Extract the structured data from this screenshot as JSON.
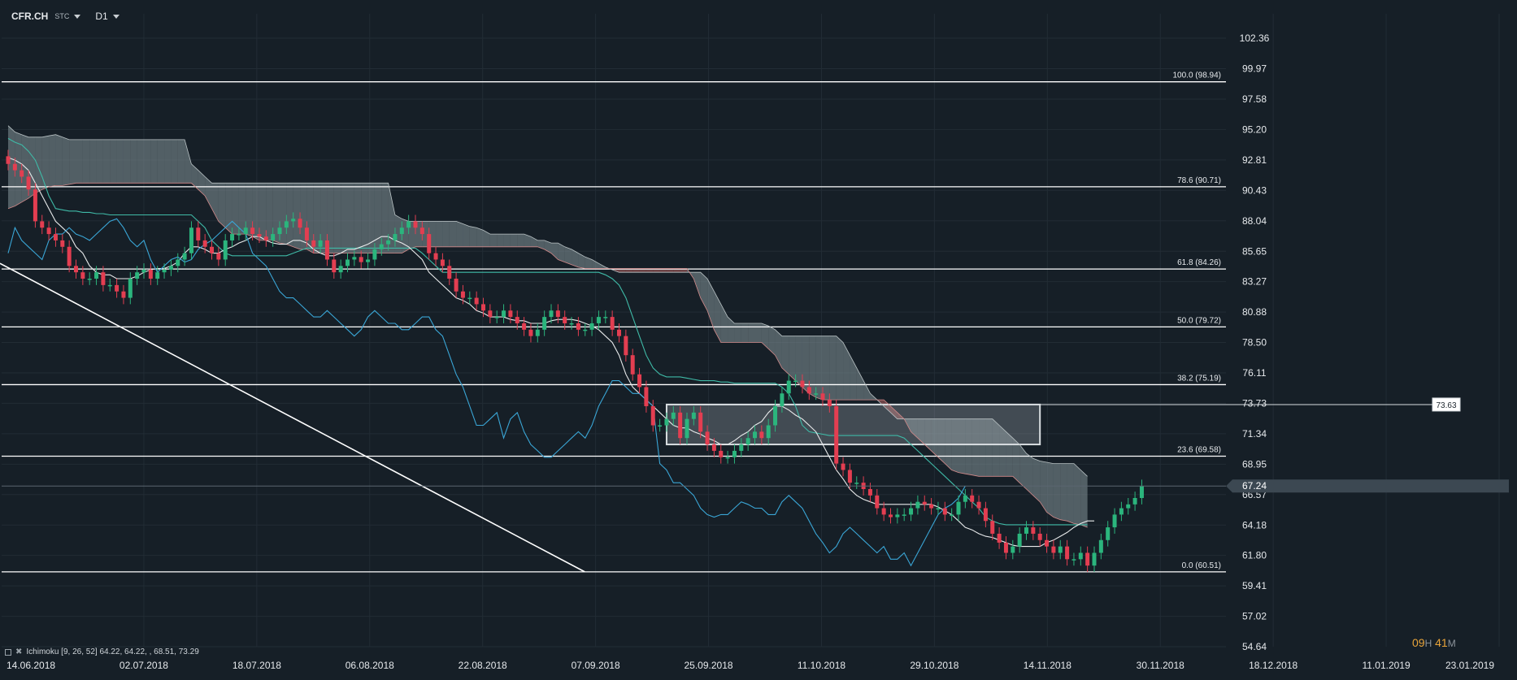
{
  "header": {
    "symbol": "CFR.CH",
    "market": "STC",
    "timeframe": "D1"
  },
  "indicator_label": "Ichimoku  [9, 26, 52]  64.22,  64.22,  , 68.51,  73.29",
  "timer": {
    "h": "09",
    "h_unit": "H",
    "m": "41",
    "m_unit": "M"
  },
  "colors": {
    "background": "#161f27",
    "grid": "#222c35",
    "up_candle": "#2bb57d",
    "down_candle": "#e33e51",
    "cloud_bull": "#7c8a8f",
    "cloud_bear": "#a85e5e",
    "kijun": "#3fbaa7",
    "tenkan": "#e8eaeb",
    "chikou": "#3aa6d6",
    "fib_line": "#ffffff"
  },
  "chart_data": {
    "type": "candlestick",
    "y_ticks": [
      "102.36",
      "99.97",
      "97.58",
      "95.20",
      "92.81",
      "90.43",
      "88.04",
      "85.65",
      "83.27",
      "80.88",
      "78.50",
      "76.11",
      "73.73",
      "71.34",
      "68.95",
      "66.57",
      "64.18",
      "61.80",
      "59.41",
      "57.02",
      "54.64"
    ],
    "x_ticks": [
      "14.06.2018",
      "02.07.2018",
      "18.07.2018",
      "06.08.2018",
      "22.08.2018",
      "07.09.2018",
      "25.09.2018",
      "11.10.2018",
      "29.10.2018",
      "14.11.2018",
      "30.11.2018",
      "18.12.2018",
      "11.01.2019",
      "23.01.2019"
    ],
    "ylim": [
      54.64,
      102.36
    ],
    "xlim": [
      0,
      160
    ],
    "last_price": "67.24",
    "fib_levels": [
      {
        "label": "100.0 (98.94)",
        "value": 98.94
      },
      {
        "label": "78.6 (90.71)",
        "value": 90.71
      },
      {
        "label": "61.8 (84.26)",
        "value": 84.26
      },
      {
        "label": "50.0 (79.72)",
        "value": 79.72
      },
      {
        "label": "38.2 (75.19)",
        "value": 75.19
      },
      {
        "label": "23.6 (69.58)",
        "value": 69.58
      },
      {
        "label": "0.0 (60.51)",
        "value": 60.51
      }
    ],
    "zone": {
      "x_start": 97,
      "x_end": 152,
      "y_low": 70.5,
      "y_high": 73.63,
      "label": "73.63"
    },
    "trendline": {
      "x1": 0,
      "y1": 84.7,
      "x2": 61,
      "y2": 60.51
    },
    "close": [
      92.5,
      92.0,
      91.5,
      90.5,
      88.0,
      87.5,
      87.0,
      86.5,
      86.0,
      84.5,
      84.0,
      83.5,
      83.5,
      84.0,
      83.0,
      83.0,
      82.5,
      82.0,
      83.5,
      84.0,
      84.2,
      83.5,
      84.0,
      84.2,
      84.5,
      85.0,
      85.5,
      87.5,
      86.5,
      86.0,
      85.5,
      85.0,
      86.5,
      87.0,
      87.0,
      87.5,
      87.0,
      86.8,
      86.5,
      87.0,
      87.5,
      88.0,
      88.2,
      87.5,
      86.5,
      86.0,
      86.5,
      85.0,
      84.0,
      84.5,
      85.0,
      85.2,
      84.8,
      85.0,
      85.8,
      86.2,
      86.5,
      87.0,
      87.5,
      88.0,
      87.5,
      87.0,
      85.5,
      85.0,
      84.5,
      83.5,
      82.5,
      82.0,
      82.0,
      81.5,
      81.0,
      80.5,
      80.5,
      81.0,
      80.5,
      80.0,
      79.5,
      79.0,
      79.5,
      80.5,
      81.0,
      80.5,
      80.0,
      80.0,
      79.5,
      79.5,
      80.0,
      80.5,
      80.5,
      79.5,
      79.0,
      77.5,
      76.0,
      75.0,
      73.5,
      72.0,
      72.0,
      72.5,
      73.0,
      71.0,
      72.5,
      73.0,
      71.5,
      70.5,
      70.0,
      69.5,
      69.5,
      70.0,
      70.5,
      71.0,
      71.5,
      71.0,
      72.0,
      73.5,
      74.5,
      75.5,
      75.5,
      75.0,
      74.5,
      74.5,
      74.0,
      73.5,
      69.0,
      68.5,
      67.5,
      67.5,
      67.0,
      66.5,
      65.5,
      65.0,
      64.8,
      65.0,
      65.0,
      65.5,
      66.0,
      65.8,
      65.5,
      65.5,
      65.0,
      65.0,
      66.0,
      66.5,
      66.0,
      65.5,
      64.5,
      63.5,
      62.8,
      62.0,
      62.5,
      63.5,
      64.0,
      63.5,
      63.0,
      62.5,
      62.0,
      62.5,
      61.5,
      61.5,
      62.0,
      61.0,
      62.0,
      63.0,
      64.0,
      65.0,
      65.5,
      65.8,
      66.3,
      67.24
    ],
    "cloud_upper": [
      95.5,
      95.0,
      94.8,
      94.6,
      94.6,
      94.6,
      94.7,
      94.8,
      94.6,
      94.4,
      94.4,
      94.4,
      94.4,
      94.4,
      94.4,
      94.4,
      94.4,
      94.4,
      94.4,
      94.4,
      94.4,
      94.4,
      94.4,
      94.4,
      94.4,
      94.4,
      94.4,
      92.5,
      92.0,
      91.5,
      91.0,
      91.0,
      91.0,
      91.0,
      91.0,
      91.0,
      91.0,
      91.0,
      91.0,
      91.0,
      91.0,
      91.0,
      91.0,
      91.0,
      91.0,
      91.0,
      91.0,
      91.0,
      91.0,
      91.0,
      91.0,
      91.0,
      91.0,
      91.0,
      91.0,
      91.0,
      91.0,
      88.5,
      88.2,
      88.0,
      88.0,
      88.0,
      88.0,
      88.0,
      88.0,
      88.0,
      88.0,
      87.8,
      87.6,
      87.5,
      87.3,
      87.0,
      87.0,
      87.0,
      87.0,
      87.0,
      87.0,
      86.8,
      86.5,
      86.5,
      86.3,
      86.3,
      86.0,
      85.8,
      85.5,
      85.2,
      85.0,
      84.7,
      84.4,
      84.2,
      84.0,
      84.0,
      84.0,
      84.0,
      84.0,
      84.0,
      84.0,
      84.0,
      84.0,
      84.0,
      84.0,
      84.0,
      84.0,
      83.5,
      82.5,
      81.5,
      80.5,
      80.0,
      80.0,
      80.0,
      80.0,
      80.0,
      79.8,
      79.5,
      79.0,
      79.0,
      79.0,
      79.0,
      79.0,
      79.0,
      79.0,
      79.0,
      79.0,
      78.5,
      77.5,
      76.5,
      75.5,
      74.5,
      74.0,
      73.5,
      73.0,
      72.5,
      72.5,
      72.5,
      72.5,
      72.5,
      72.5,
      72.5,
      72.5,
      72.5,
      72.5,
      72.5,
      72.5,
      72.5,
      72.5,
      72.5,
      72.0,
      71.5,
      71.0,
      70.5,
      69.8,
      69.4,
      69.2,
      69.1,
      69.0,
      69.0,
      69.0,
      69.0,
      68.5,
      68.0
    ],
    "cloud_lower": [
      89.0,
      89.2,
      89.5,
      89.8,
      90.2,
      90.5,
      90.7,
      90.8,
      90.8,
      90.9,
      91.0,
      91.0,
      91.0,
      91.0,
      91.0,
      91.0,
      91.0,
      91.0,
      91.0,
      91.0,
      91.0,
      91.0,
      91.0,
      91.0,
      91.0,
      91.0,
      91.0,
      91.0,
      90.5,
      90.0,
      89.0,
      88.0,
      87.5,
      87.0,
      87.0,
      87.0,
      86.8,
      86.5,
      86.5,
      86.5,
      86.3,
      86.2,
      86.0,
      85.8,
      85.8,
      85.5,
      85.5,
      85.5,
      85.5,
      85.5,
      85.5,
      85.5,
      85.5,
      85.5,
      85.5,
      85.5,
      85.5,
      85.5,
      85.5,
      85.8,
      86.0,
      86.0,
      86.0,
      86.0,
      86.0,
      86.0,
      86.0,
      86.0,
      86.0,
      86.0,
      86.0,
      86.0,
      86.0,
      86.0,
      86.0,
      86.0,
      86.0,
      86.0,
      86.0,
      85.8,
      85.5,
      85.0,
      84.8,
      84.6,
      84.4,
      84.3,
      84.3,
      84.3,
      84.3,
      84.3,
      84.3,
      84.3,
      84.3,
      84.3,
      84.3,
      84.3,
      84.3,
      84.3,
      84.3,
      84.3,
      84.3,
      83.5,
      82.0,
      81.0,
      79.5,
      78.5,
      78.5,
      78.5,
      78.5,
      78.5,
      78.5,
      78.5,
      78.0,
      77.5,
      76.5,
      76.0,
      75.5,
      75.0,
      74.5,
      74.2,
      74.0,
      74.0,
      74.0,
      74.0,
      74.0,
      74.0,
      74.0,
      74.0,
      74.0,
      74.0,
      73.5,
      73.0,
      72.5,
      71.5,
      71.0,
      70.5,
      70.0,
      69.5,
      69.0,
      68.5,
      68.3,
      68.2,
      68.1,
      68.0,
      68.0,
      68.0,
      68.0,
      68.0,
      68.0,
      67.5,
      67.0,
      66.5,
      66.0,
      65.2,
      64.8,
      64.6,
      64.5,
      64.3,
      64.2,
      64.0
    ],
    "kijun": [
      94.5,
      94.2,
      94.0,
      93.5,
      92.8,
      91.5,
      90.0,
      89.0,
      88.9,
      88.8,
      88.8,
      88.7,
      88.7,
      88.6,
      88.6,
      88.5,
      88.5,
      88.5,
      88.5,
      88.5,
      88.5,
      88.5,
      88.5,
      88.5,
      88.5,
      88.5,
      88.5,
      88.5,
      88.0,
      87.5,
      86.5,
      86.0,
      85.5,
      85.3,
      85.3,
      85.3,
      85.3,
      85.3,
      85.3,
      85.3,
      85.3,
      85.3,
      85.5,
      85.7,
      85.9,
      85.9,
      85.9,
      85.9,
      85.9,
      85.9,
      85.9,
      85.9,
      85.9,
      85.9,
      85.9,
      85.9,
      85.9,
      85.9,
      85.9,
      85.9,
      85.9,
      85.5,
      85.0,
      84.5,
      84.0,
      84.0,
      84.0,
      84.0,
      84.0,
      84.0,
      84.0,
      84.0,
      84.0,
      84.0,
      84.0,
      84.0,
      84.0,
      84.0,
      84.0,
      84.0,
      84.0,
      84.0,
      84.0,
      84.0,
      84.0,
      84.0,
      84.0,
      84.0,
      83.8,
      83.5,
      83.0,
      82.0,
      80.5,
      79.0,
      77.5,
      76.5,
      76.0,
      75.8,
      75.8,
      75.8,
      75.7,
      75.6,
      75.5,
      75.5,
      75.5,
      75.4,
      75.4,
      75.3,
      75.3,
      75.3,
      75.3,
      75.3,
      75.3,
      75.3,
      75.0,
      74.5,
      73.5,
      72.0,
      71.5,
      71.4,
      71.3,
      71.2,
      71.2,
      71.2,
      71.2,
      71.2,
      71.2,
      71.2,
      71.2,
      71.2,
      71.2,
      71.2,
      71.0,
      70.5,
      70.0,
      69.5,
      69.0,
      68.5,
      68.0,
      67.5,
      67.0,
      66.5,
      66.0,
      65.5,
      64.8,
      64.5,
      64.3,
      64.2,
      64.2,
      64.2,
      64.2,
      64.2,
      64.2,
      64.2,
      64.2,
      64.2,
      64.2,
      64.2,
      64.2,
      64.2
    ],
    "tenkan": [
      93.0,
      92.8,
      92.5,
      92.0,
      91.0,
      90.0,
      89.0,
      88.0,
      87.5,
      87.0,
      86.0,
      85.5,
      84.5,
      84.0,
      83.8,
      83.8,
      83.5,
      83.5,
      83.5,
      83.7,
      84.0,
      84.2,
      84.3,
      84.3,
      84.5,
      84.8,
      85.5,
      86.0,
      86.0,
      85.8,
      85.5,
      85.5,
      85.8,
      86.0,
      86.3,
      86.5,
      86.8,
      86.8,
      86.5,
      86.3,
      86.2,
      86.2,
      86.5,
      86.5,
      86.3,
      85.8,
      85.5,
      85.3,
      85.3,
      85.5,
      85.8,
      85.8,
      86.0,
      86.2,
      86.5,
      86.8,
      86.8,
      86.5,
      86.3,
      86.0,
      85.5,
      85.0,
      84.0,
      83.5,
      83.0,
      82.5,
      82.0,
      81.8,
      81.5,
      81.0,
      80.8,
      80.5,
      80.5,
      80.5,
      80.3,
      80.2,
      80.2,
      80.0,
      80.0,
      80.0,
      80.2,
      80.3,
      80.3,
      80.3,
      80.2,
      80.0,
      79.8,
      79.5,
      79.0,
      78.5,
      77.5,
      76.0,
      75.0,
      74.5,
      74.0,
      73.5,
      73.0,
      72.5,
      72.0,
      71.8,
      71.8,
      71.5,
      71.3,
      71.0,
      70.8,
      70.5,
      70.5,
      70.8,
      71.2,
      71.5,
      72.0,
      72.3,
      73.0,
      73.5,
      73.5,
      73.2,
      72.8,
      72.5,
      72.0,
      71.5,
      70.5,
      69.5,
      68.5,
      67.8,
      67.0,
      66.5,
      66.2,
      66.0,
      65.8,
      65.8,
      65.8,
      65.8,
      65.8,
      65.8,
      65.8,
      65.8,
      65.8,
      65.6,
      65.3,
      65.0,
      64.5,
      64.0,
      63.8,
      63.5,
      63.3,
      63.2,
      63.0,
      62.8,
      62.6,
      62.5,
      62.5,
      62.5,
      62.5,
      62.8,
      63.0,
      63.3,
      63.6,
      64.0,
      64.3,
      64.5,
      64.5
    ]
  }
}
